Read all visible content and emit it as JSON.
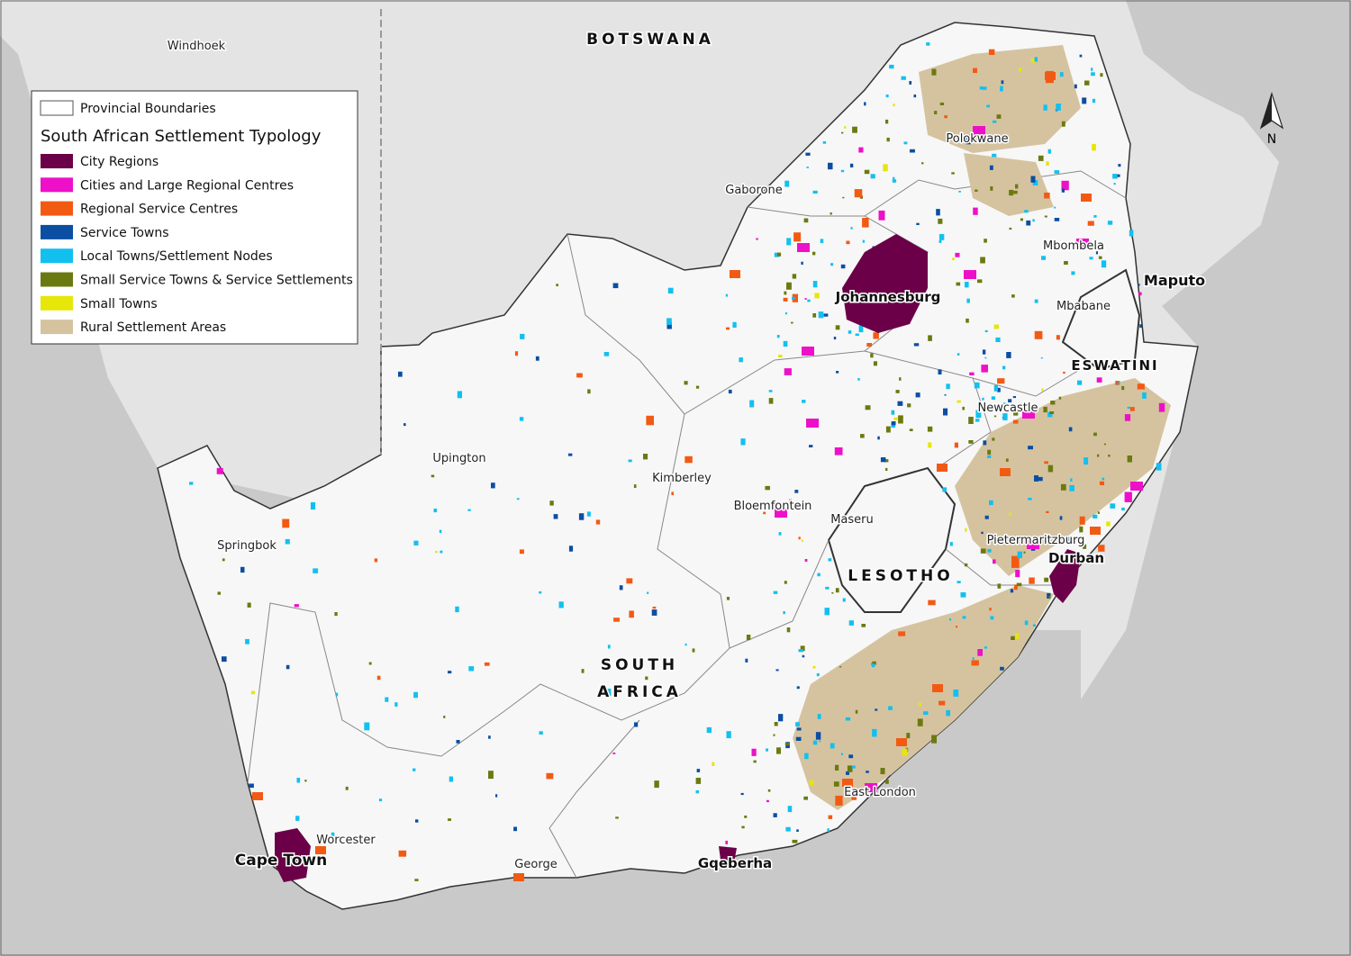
{
  "legend": {
    "boundary": "Provincial Boundaries",
    "title": "South African Settlement Typology",
    "items": [
      {
        "label": "City Regions",
        "color": "#6b0048"
      },
      {
        "label": "Cities and Large Regional Centres",
        "color": "#ee10c8"
      },
      {
        "label": "Regional Service Centres",
        "color": "#f25a14"
      },
      {
        "label": "Service Towns",
        "color": "#0b4ea2"
      },
      {
        "label": "Local Towns/Settlement Nodes",
        "color": "#12c0f0"
      },
      {
        "label": "Small Service Towns & Service Settlements",
        "color": "#6b7a10"
      },
      {
        "label": "Small Towns",
        "color": "#e6e60a"
      },
      {
        "label": "Rural Settlement Areas",
        "color": "#d5c3a0"
      }
    ]
  },
  "countries": {
    "botswana": "BOTSWANA",
    "south_africa": [
      "SOUTH",
      "AFRICA"
    ],
    "lesotho": "LESOTHO",
    "eswatini": "ESWATINI"
  },
  "places": {
    "windhoek": "Windhoek",
    "gaborone": "Gaborone",
    "polokwane": "Polokwane",
    "mbombela": "Mbombela",
    "maputo": "Maputo",
    "mbabane": "Mbabane",
    "johannesburg": "Johannesburg",
    "newcastle": "Newcastle",
    "upington": "Upington",
    "kimberley": "Kimberley",
    "bloemfontein": "Bloemfontein",
    "maseru": "Maseru",
    "springbok": "Springbok",
    "pietermaritzburg": "Pietermaritzburg",
    "durban": "Durban",
    "east_london": "East London",
    "worcester": "Worcester",
    "cape_town": "Cape Town",
    "george": "George",
    "gqeberha": "Gqeberha"
  },
  "north_arrow": "N"
}
